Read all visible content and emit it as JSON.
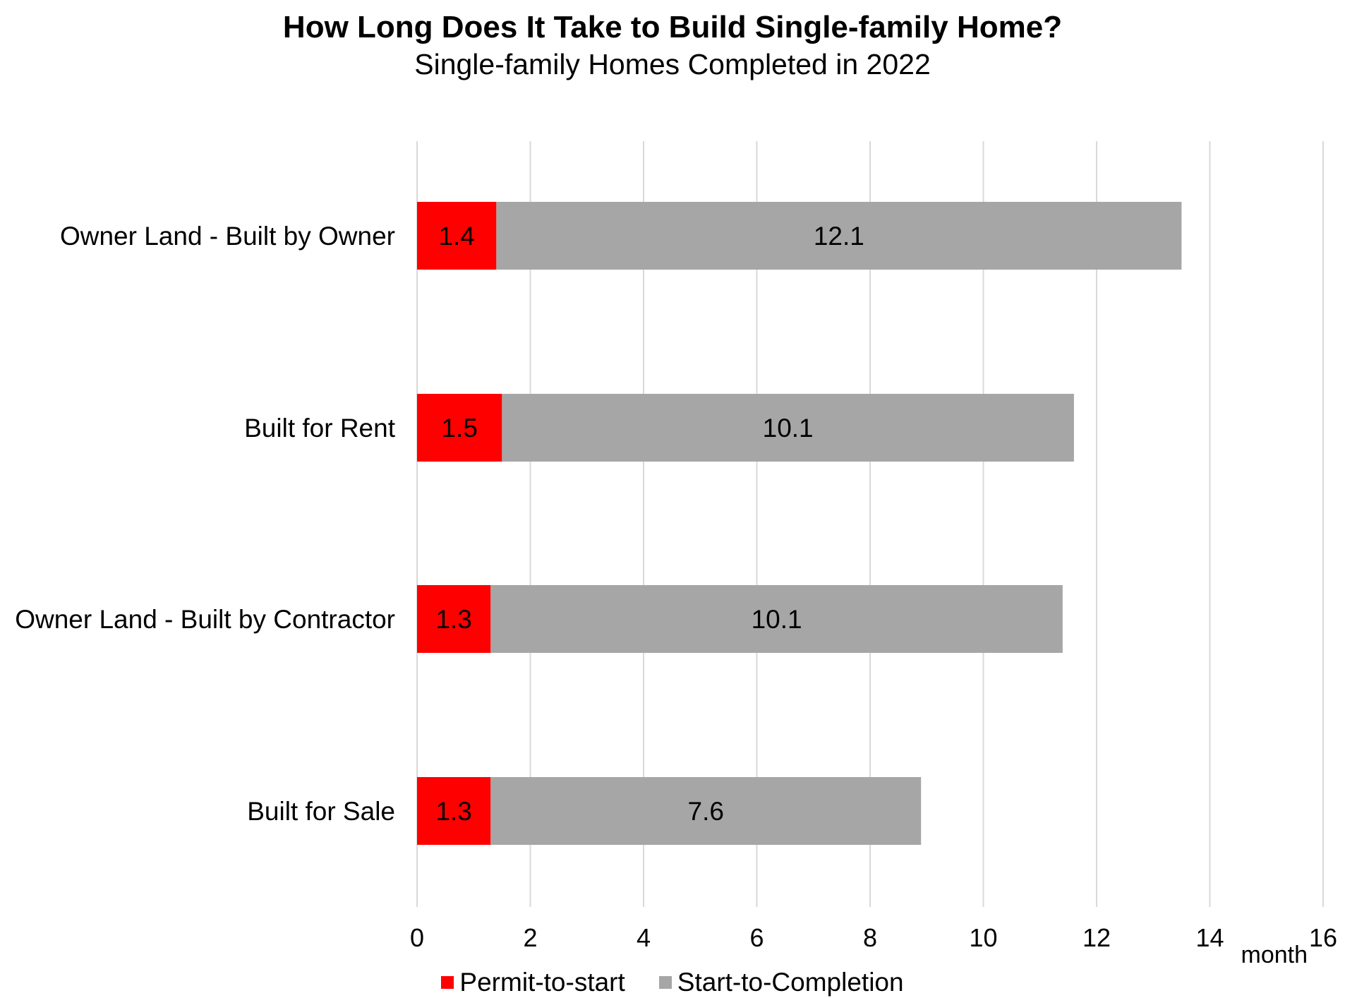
{
  "chart_data": {
    "type": "bar",
    "orientation": "horizontal",
    "stacked": true,
    "title": "How Long Does It Take to Build Single-family Home?",
    "subtitle": "Single-family Homes Completed in 2022",
    "xlabel": "month",
    "categories": [
      "Owner Land - Built by Owner",
      "Built for Rent",
      "Owner Land - Built by Contractor",
      "Built for Sale"
    ],
    "series": [
      {
        "name": "Permit-to-start",
        "color": "#ff0000",
        "values": [
          1.4,
          1.5,
          1.3,
          1.3
        ],
        "labels": [
          "1.4",
          "1.5",
          "1.3",
          "1.3"
        ]
      },
      {
        "name": "Start-to-Completion",
        "color": "#a6a6a6",
        "values": [
          12.1,
          10.1,
          10.1,
          7.6
        ],
        "labels": [
          "12.1",
          "10.1",
          "10.1",
          "7.6"
        ]
      }
    ],
    "xlim": [
      0,
      16
    ],
    "xticks": [
      "0",
      "2",
      "4",
      "6",
      "8",
      "10",
      "12",
      "14",
      "16"
    ],
    "grid": true,
    "legend_position": "bottom"
  }
}
